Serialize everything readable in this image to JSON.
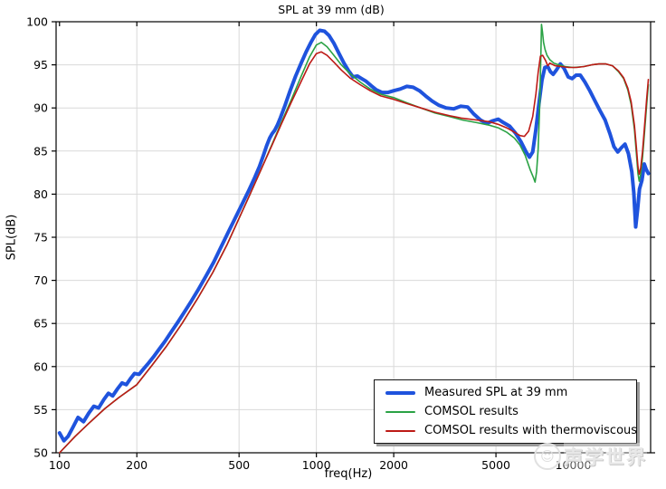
{
  "page": {
    "title": "SPL at 39 mm (dB)"
  },
  "chart_data": {
    "type": "line",
    "title": "SPL at 39 mm (dB)",
    "xlabel": "freq(Hz)",
    "ylabel": "SPL(dB)",
    "x_scale": "log",
    "x_range": [
      97,
      20000
    ],
    "y_range": [
      50,
      100
    ],
    "x_ticks": [
      100,
      200,
      500,
      1000,
      2000,
      5000,
      10000
    ],
    "y_ticks": [
      50,
      55,
      60,
      65,
      70,
      75,
      80,
      85,
      90,
      95,
      100
    ],
    "grid": true,
    "grid_color": "#d9d9d9",
    "frame_color": "#000000",
    "legend_position": "bottom-right-inside",
    "watermark": "声学世界",
    "series": [
      {
        "name": "Measured SPL at 39 mm",
        "color": "#1f53dd",
        "width": 4,
        "points": [
          [
            100,
            52.3
          ],
          [
            104,
            51.4
          ],
          [
            108,
            51.9
          ],
          [
            113,
            53.0
          ],
          [
            118,
            54.1
          ],
          [
            124,
            53.6
          ],
          [
            130,
            54.6
          ],
          [
            136,
            55.4
          ],
          [
            142,
            55.2
          ],
          [
            149,
            56.2
          ],
          [
            155,
            56.9
          ],
          [
            161,
            56.6
          ],
          [
            168,
            57.4
          ],
          [
            175,
            58.1
          ],
          [
            182,
            57.9
          ],
          [
            189,
            58.6
          ],
          [
            196,
            59.2
          ],
          [
            204,
            59.1
          ],
          [
            212,
            59.7
          ],
          [
            222,
            60.4
          ],
          [
            232,
            61.1
          ],
          [
            244,
            62.0
          ],
          [
            257,
            62.9
          ],
          [
            272,
            64.0
          ],
          [
            288,
            65.1
          ],
          [
            306,
            66.3
          ],
          [
            326,
            67.6
          ],
          [
            348,
            69.0
          ],
          [
            372,
            70.5
          ],
          [
            398,
            72.1
          ],
          [
            426,
            73.9
          ],
          [
            456,
            75.7
          ],
          [
            488,
            77.5
          ],
          [
            515,
            78.9
          ],
          [
            545,
            80.4
          ],
          [
            575,
            81.9
          ],
          [
            600,
            83.2
          ],
          [
            622,
            84.5
          ],
          [
            640,
            85.6
          ],
          [
            658,
            86.5
          ],
          [
            672,
            87.0
          ],
          [
            688,
            87.4
          ],
          [
            705,
            88.0
          ],
          [
            725,
            88.9
          ],
          [
            755,
            90.3
          ],
          [
            790,
            92.0
          ],
          [
            830,
            93.7
          ],
          [
            872,
            95.2
          ],
          [
            912,
            96.5
          ],
          [
            952,
            97.6
          ],
          [
            990,
            98.5
          ],
          [
            1030,
            99.0
          ],
          [
            1075,
            98.9
          ],
          [
            1120,
            98.4
          ],
          [
            1170,
            97.5
          ],
          [
            1225,
            96.3
          ],
          [
            1280,
            95.2
          ],
          [
            1335,
            94.3
          ],
          [
            1390,
            93.6
          ],
          [
            1445,
            93.7
          ],
          [
            1500,
            93.4
          ],
          [
            1560,
            93.1
          ],
          [
            1630,
            92.6
          ],
          [
            1710,
            92.1
          ],
          [
            1800,
            91.8
          ],
          [
            1900,
            91.8
          ],
          [
            2000,
            92.0
          ],
          [
            2120,
            92.2
          ],
          [
            2250,
            92.5
          ],
          [
            2380,
            92.4
          ],
          [
            2520,
            92.0
          ],
          [
            2660,
            91.4
          ],
          [
            2820,
            90.8
          ],
          [
            3000,
            90.3
          ],
          [
            3200,
            90.0
          ],
          [
            3420,
            89.9
          ],
          [
            3650,
            90.2
          ],
          [
            3880,
            90.1
          ],
          [
            4100,
            89.3
          ],
          [
            4350,
            88.6
          ],
          [
            4600,
            88.2
          ],
          [
            4850,
            88.5
          ],
          [
            5100,
            88.7
          ],
          [
            5350,
            88.3
          ],
          [
            5650,
            87.9
          ],
          [
            5950,
            87.1
          ],
          [
            6250,
            86.1
          ],
          [
            6550,
            84.9
          ],
          [
            6750,
            84.3
          ],
          [
            6950,
            84.9
          ],
          [
            7150,
            87.5
          ],
          [
            7350,
            90.5
          ],
          [
            7550,
            93.2
          ],
          [
            7750,
            94.7
          ],
          [
            7950,
            94.8
          ],
          [
            8150,
            94.2
          ],
          [
            8350,
            93.9
          ],
          [
            8600,
            94.4
          ],
          [
            8900,
            95.1
          ],
          [
            9200,
            94.6
          ],
          [
            9550,
            93.6
          ],
          [
            9900,
            93.4
          ],
          [
            10250,
            93.8
          ],
          [
            10650,
            93.8
          ],
          [
            11100,
            93.0
          ],
          [
            11600,
            92.0
          ],
          [
            12150,
            90.8
          ],
          [
            12700,
            89.7
          ],
          [
            13300,
            88.6
          ],
          [
            13900,
            87.0
          ],
          [
            14400,
            85.5
          ],
          [
            14900,
            84.9
          ],
          [
            15400,
            85.4
          ],
          [
            15900,
            85.8
          ],
          [
            16400,
            84.7
          ],
          [
            16900,
            82.6
          ],
          [
            17200,
            80.2
          ],
          [
            17500,
            76.2
          ],
          [
            17800,
            78.2
          ],
          [
            18100,
            80.6
          ],
          [
            18500,
            81.6
          ],
          [
            18900,
            83.5
          ],
          [
            19200,
            82.9
          ],
          [
            19600,
            82.4
          ]
        ]
      },
      {
        "name": "COMSOL results",
        "color": "#2aa244",
        "width": 1.6,
        "points": [
          [
            100,
            50.0
          ],
          [
            115,
            51.9
          ],
          [
            130,
            53.4
          ],
          [
            150,
            55.1
          ],
          [
            170,
            56.4
          ],
          [
            200,
            57.9
          ],
          [
            230,
            60.2
          ],
          [
            260,
            62.3
          ],
          [
            300,
            65.0
          ],
          [
            345,
            67.9
          ],
          [
            395,
            70.9
          ],
          [
            450,
            74.2
          ],
          [
            500,
            77.2
          ],
          [
            550,
            79.9
          ],
          [
            610,
            82.9
          ],
          [
            670,
            85.7
          ],
          [
            730,
            88.3
          ],
          [
            800,
            91.0
          ],
          [
            870,
            93.6
          ],
          [
            940,
            95.9
          ],
          [
            1000,
            97.3
          ],
          [
            1045,
            97.6
          ],
          [
            1100,
            97.1
          ],
          [
            1170,
            96.1
          ],
          [
            1250,
            95.0
          ],
          [
            1350,
            94.0
          ],
          [
            1480,
            93.0
          ],
          [
            1620,
            92.2
          ],
          [
            1780,
            91.6
          ],
          [
            2000,
            91.2
          ],
          [
            2250,
            90.6
          ],
          [
            2550,
            90.0
          ],
          [
            2900,
            89.4
          ],
          [
            3300,
            89.0
          ],
          [
            3700,
            88.6
          ],
          [
            4200,
            88.3
          ],
          [
            4700,
            88.0
          ],
          [
            5100,
            87.7
          ],
          [
            5500,
            87.2
          ],
          [
            5900,
            86.5
          ],
          [
            6200,
            85.7
          ],
          [
            6500,
            84.5
          ],
          [
            6800,
            82.8
          ],
          [
            7000,
            81.9
          ],
          [
            7100,
            81.4
          ],
          [
            7200,
            82.6
          ],
          [
            7300,
            85.2
          ],
          [
            7390,
            89.5
          ],
          [
            7470,
            95.5
          ],
          [
            7520,
            99.7
          ],
          [
            7590,
            98.8
          ],
          [
            7660,
            97.6
          ],
          [
            7760,
            96.8
          ],
          [
            7900,
            96.1
          ],
          [
            8100,
            95.6
          ],
          [
            8400,
            95.2
          ],
          [
            8800,
            95.0
          ],
          [
            9300,
            94.8
          ],
          [
            10000,
            94.7
          ],
          [
            11000,
            94.8
          ],
          [
            11800,
            95.0
          ],
          [
            12600,
            95.1
          ],
          [
            13400,
            95.1
          ],
          [
            14200,
            94.9
          ],
          [
            15000,
            94.2
          ],
          [
            15700,
            93.4
          ],
          [
            16300,
            92.1
          ],
          [
            16800,
            90.4
          ],
          [
            17300,
            87.5
          ],
          [
            17600,
            84.8
          ],
          [
            17850,
            82.4
          ],
          [
            18050,
            81.5
          ],
          [
            18300,
            82.3
          ],
          [
            18600,
            84.3
          ],
          [
            18900,
            86.8
          ],
          [
            19300,
            90.3
          ],
          [
            19600,
            92.7
          ]
        ]
      },
      {
        "name": "COMSOL results with thermoviscous",
        "color": "#bd1a16",
        "width": 1.6,
        "points": [
          [
            100,
            50.0
          ],
          [
            115,
            51.9
          ],
          [
            130,
            53.4
          ],
          [
            150,
            55.1
          ],
          [
            170,
            56.4
          ],
          [
            200,
            57.9
          ],
          [
            230,
            60.2
          ],
          [
            260,
            62.3
          ],
          [
            300,
            65.0
          ],
          [
            345,
            67.9
          ],
          [
            395,
            70.9
          ],
          [
            450,
            74.2
          ],
          [
            500,
            77.2
          ],
          [
            550,
            79.9
          ],
          [
            610,
            82.9
          ],
          [
            670,
            85.6
          ],
          [
            730,
            88.1
          ],
          [
            800,
            90.7
          ],
          [
            870,
            93.0
          ],
          [
            940,
            95.1
          ],
          [
            1000,
            96.3
          ],
          [
            1045,
            96.5
          ],
          [
            1100,
            96.1
          ],
          [
            1170,
            95.3
          ],
          [
            1250,
            94.4
          ],
          [
            1350,
            93.5
          ],
          [
            1480,
            92.7
          ],
          [
            1620,
            92.0
          ],
          [
            1780,
            91.4
          ],
          [
            2000,
            91.0
          ],
          [
            2250,
            90.5
          ],
          [
            2550,
            90.0
          ],
          [
            2900,
            89.5
          ],
          [
            3300,
            89.1
          ],
          [
            3700,
            88.8
          ],
          [
            4200,
            88.6
          ],
          [
            4700,
            88.4
          ],
          [
            5100,
            88.1
          ],
          [
            5500,
            87.7
          ],
          [
            5900,
            87.2
          ],
          [
            6200,
            86.8
          ],
          [
            6450,
            86.7
          ],
          [
            6700,
            87.3
          ],
          [
            6950,
            89.0
          ],
          [
            7150,
            91.6
          ],
          [
            7300,
            94.1
          ],
          [
            7450,
            96.0
          ],
          [
            7600,
            96.1
          ],
          [
            7800,
            95.5
          ],
          [
            7950,
            94.9
          ],
          [
            8100,
            95.2
          ],
          [
            8500,
            94.9
          ],
          [
            9000,
            94.8
          ],
          [
            9600,
            94.7
          ],
          [
            10300,
            94.7
          ],
          [
            11000,
            94.8
          ],
          [
            11800,
            95.0
          ],
          [
            12600,
            95.1
          ],
          [
            13400,
            95.1
          ],
          [
            14200,
            94.9
          ],
          [
            15000,
            94.3
          ],
          [
            15700,
            93.5
          ],
          [
            16300,
            92.3
          ],
          [
            16800,
            90.7
          ],
          [
            17300,
            88.0
          ],
          [
            17600,
            85.5
          ],
          [
            17850,
            83.2
          ],
          [
            18050,
            82.3
          ],
          [
            18300,
            83.0
          ],
          [
            18600,
            85.0
          ],
          [
            18900,
            87.5
          ],
          [
            19300,
            91.0
          ],
          [
            19600,
            93.3
          ]
        ]
      }
    ]
  }
}
